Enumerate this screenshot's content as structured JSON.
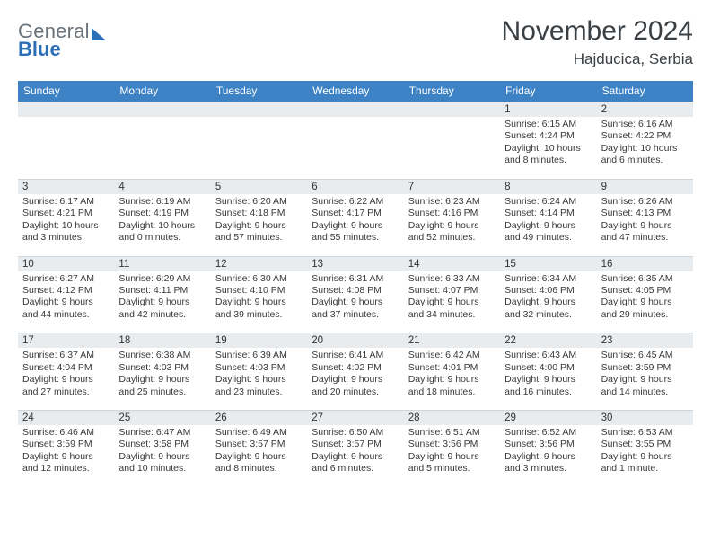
{
  "logo": {
    "line1": "General",
    "line2": "Blue"
  },
  "title": "November 2024",
  "location": "Hajducica, Serbia",
  "colors": {
    "header_bg": "#3d82c4",
    "header_text": "#ffffff",
    "daynum_bg": "#e8ecef",
    "body_text": "#36393c",
    "logo_gray": "#6a737b",
    "logo_blue": "#2d6fb7"
  },
  "dayNames": [
    "Sunday",
    "Monday",
    "Tuesday",
    "Wednesday",
    "Thursday",
    "Friday",
    "Saturday"
  ],
  "weeks": [
    [
      null,
      null,
      null,
      null,
      null,
      {
        "n": "1",
        "sr": "6:15 AM",
        "ss": "4:24 PM",
        "dl": "10 hours and 8 minutes."
      },
      {
        "n": "2",
        "sr": "6:16 AM",
        "ss": "4:22 PM",
        "dl": "10 hours and 6 minutes."
      }
    ],
    [
      {
        "n": "3",
        "sr": "6:17 AM",
        "ss": "4:21 PM",
        "dl": "10 hours and 3 minutes."
      },
      {
        "n": "4",
        "sr": "6:19 AM",
        "ss": "4:19 PM",
        "dl": "10 hours and 0 minutes."
      },
      {
        "n": "5",
        "sr": "6:20 AM",
        "ss": "4:18 PM",
        "dl": "9 hours and 57 minutes."
      },
      {
        "n": "6",
        "sr": "6:22 AM",
        "ss": "4:17 PM",
        "dl": "9 hours and 55 minutes."
      },
      {
        "n": "7",
        "sr": "6:23 AM",
        "ss": "4:16 PM",
        "dl": "9 hours and 52 minutes."
      },
      {
        "n": "8",
        "sr": "6:24 AM",
        "ss": "4:14 PM",
        "dl": "9 hours and 49 minutes."
      },
      {
        "n": "9",
        "sr": "6:26 AM",
        "ss": "4:13 PM",
        "dl": "9 hours and 47 minutes."
      }
    ],
    [
      {
        "n": "10",
        "sr": "6:27 AM",
        "ss": "4:12 PM",
        "dl": "9 hours and 44 minutes."
      },
      {
        "n": "11",
        "sr": "6:29 AM",
        "ss": "4:11 PM",
        "dl": "9 hours and 42 minutes."
      },
      {
        "n": "12",
        "sr": "6:30 AM",
        "ss": "4:10 PM",
        "dl": "9 hours and 39 minutes."
      },
      {
        "n": "13",
        "sr": "6:31 AM",
        "ss": "4:08 PM",
        "dl": "9 hours and 37 minutes."
      },
      {
        "n": "14",
        "sr": "6:33 AM",
        "ss": "4:07 PM",
        "dl": "9 hours and 34 minutes."
      },
      {
        "n": "15",
        "sr": "6:34 AM",
        "ss": "4:06 PM",
        "dl": "9 hours and 32 minutes."
      },
      {
        "n": "16",
        "sr": "6:35 AM",
        "ss": "4:05 PM",
        "dl": "9 hours and 29 minutes."
      }
    ],
    [
      {
        "n": "17",
        "sr": "6:37 AM",
        "ss": "4:04 PM",
        "dl": "9 hours and 27 minutes."
      },
      {
        "n": "18",
        "sr": "6:38 AM",
        "ss": "4:03 PM",
        "dl": "9 hours and 25 minutes."
      },
      {
        "n": "19",
        "sr": "6:39 AM",
        "ss": "4:03 PM",
        "dl": "9 hours and 23 minutes."
      },
      {
        "n": "20",
        "sr": "6:41 AM",
        "ss": "4:02 PM",
        "dl": "9 hours and 20 minutes."
      },
      {
        "n": "21",
        "sr": "6:42 AM",
        "ss": "4:01 PM",
        "dl": "9 hours and 18 minutes."
      },
      {
        "n": "22",
        "sr": "6:43 AM",
        "ss": "4:00 PM",
        "dl": "9 hours and 16 minutes."
      },
      {
        "n": "23",
        "sr": "6:45 AM",
        "ss": "3:59 PM",
        "dl": "9 hours and 14 minutes."
      }
    ],
    [
      {
        "n": "24",
        "sr": "6:46 AM",
        "ss": "3:59 PM",
        "dl": "9 hours and 12 minutes."
      },
      {
        "n": "25",
        "sr": "6:47 AM",
        "ss": "3:58 PM",
        "dl": "9 hours and 10 minutes."
      },
      {
        "n": "26",
        "sr": "6:49 AM",
        "ss": "3:57 PM",
        "dl": "9 hours and 8 minutes."
      },
      {
        "n": "27",
        "sr": "6:50 AM",
        "ss": "3:57 PM",
        "dl": "9 hours and 6 minutes."
      },
      {
        "n": "28",
        "sr": "6:51 AM",
        "ss": "3:56 PM",
        "dl": "9 hours and 5 minutes."
      },
      {
        "n": "29",
        "sr": "6:52 AM",
        "ss": "3:56 PM",
        "dl": "9 hours and 3 minutes."
      },
      {
        "n": "30",
        "sr": "6:53 AM",
        "ss": "3:55 PM",
        "dl": "9 hours and 1 minute."
      }
    ]
  ],
  "labels": {
    "sunrise": "Sunrise:",
    "sunset": "Sunset:",
    "daylight": "Daylight:"
  }
}
